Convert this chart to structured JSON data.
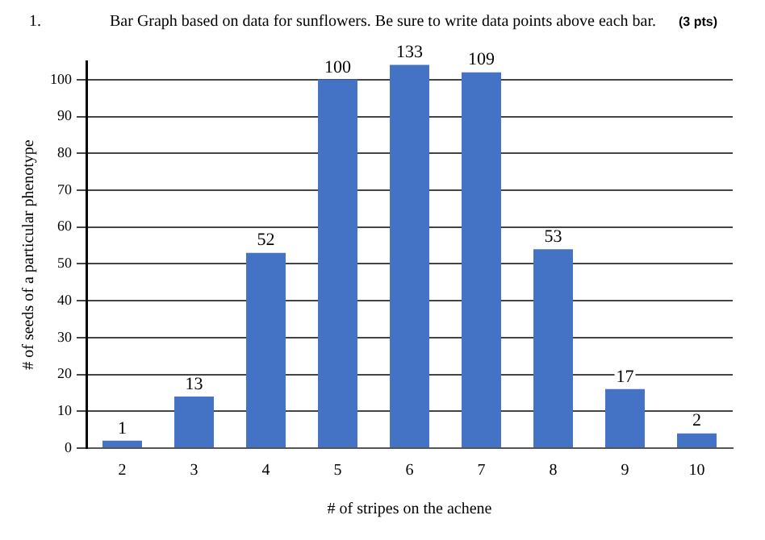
{
  "chart_data": {
    "type": "bar",
    "title": "Bar Graph based on data for sunflowers. Be sure to write data points above each bar.",
    "annotations": [
      "1.",
      "(3 pts)",
      {
        "text": "1",
        "x": "2",
        "y": 2
      },
      {
        "text": "13",
        "x": "3",
        "y": 14
      },
      {
        "text": "52",
        "x": "4",
        "y": 53
      },
      {
        "text": "100",
        "x": "5",
        "y": 100
      },
      {
        "text": "133",
        "x": "6",
        "y": 104
      },
      {
        "text": "109",
        "x": "7",
        "y": 102
      },
      {
        "text": "53",
        "x": "8",
        "y": 54
      },
      {
        "text": "17",
        "x": "9",
        "y": 16
      },
      {
        "text": "2",
        "x": "10",
        "y": 4
      }
    ],
    "xlabel": "# of stripes on the achene",
    "ylabel": "# of seeds of a particular phenotype",
    "categories": [
      "2",
      "3",
      "4",
      "5",
      "6",
      "7",
      "8",
      "9",
      "10"
    ],
    "values": [
      2,
      14,
      53,
      100,
      104,
      102,
      54,
      16,
      4
    ],
    "color": "#4472c4",
    "ylim": [
      0,
      105
    ],
    "yticks": [
      0,
      10,
      20,
      30,
      40,
      50,
      60,
      70,
      80,
      90,
      100
    ],
    "grid": "y",
    "legend": false
  }
}
